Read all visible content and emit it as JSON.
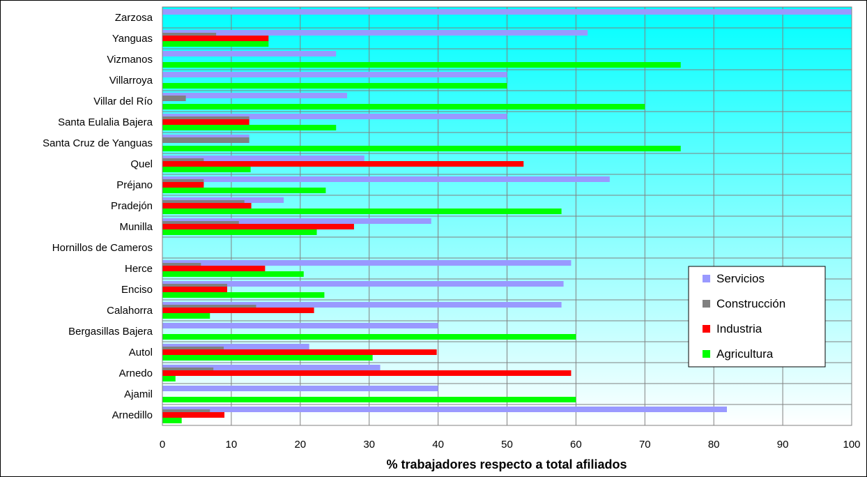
{
  "chart_data": {
    "type": "bar",
    "orientation": "horizontal",
    "categories": [
      "Zarzosa",
      "Yanguas",
      "Vizmanos",
      "Villarroya",
      "Villar del Río",
      "Santa Eulalia Bajera",
      "Santa Cruz de Yanguas",
      "Quel",
      "Préjano",
      "Pradejón",
      "Munilla",
      "Hornillos de Cameros",
      "Herce",
      "Enciso",
      "Calahorra",
      "Bergasillas Bajera",
      "Autol",
      "Arnedo",
      "Ajamil",
      "Arnedillo"
    ],
    "series": [
      {
        "name": "Servicios",
        "color": "#9999ff",
        "values": [
          100,
          61.7,
          25.2,
          50,
          26.8,
          50,
          12.6,
          29.3,
          64.9,
          17.6,
          39,
          0,
          59.3,
          58.2,
          57.9,
          40,
          21.3,
          31.6,
          40,
          81.9
        ]
      },
      {
        "name": "Construcción",
        "color": "#808080",
        "values": [
          0,
          7.8,
          0,
          0,
          3.4,
          12.6,
          12.6,
          6,
          6,
          11.9,
          11.1,
          0,
          5.6,
          9.4,
          13.6,
          0,
          8.9,
          7.4,
          0,
          6.9
        ]
      },
      {
        "name": "Industria",
        "color": "#ff0000",
        "values": [
          0,
          15.4,
          0,
          0,
          0,
          12.6,
          0,
          52.4,
          6,
          12.9,
          27.8,
          0,
          14.9,
          9.4,
          22,
          0,
          39.8,
          59.3,
          0,
          9
        ]
      },
      {
        "name": "Agricultura",
        "color": "#00ff00",
        "values": [
          0,
          15.4,
          75.2,
          50,
          70,
          25.2,
          75.2,
          12.8,
          23.7,
          57.9,
          22.4,
          0,
          20.5,
          23.5,
          6.9,
          60,
          30.5,
          1.9,
          60,
          2.8
        ]
      }
    ],
    "xlim": [
      0,
      100
    ],
    "x_ticks": [
      "0",
      "10",
      "20",
      "30",
      "40",
      "50",
      "60",
      "70",
      "80",
      "90",
      "100"
    ],
    "xlabel": "% trabajadores respecto a total afiliados",
    "legend_position": "right",
    "grid": true,
    "background_gradient": [
      "#00ffff",
      "#ffffff"
    ]
  }
}
